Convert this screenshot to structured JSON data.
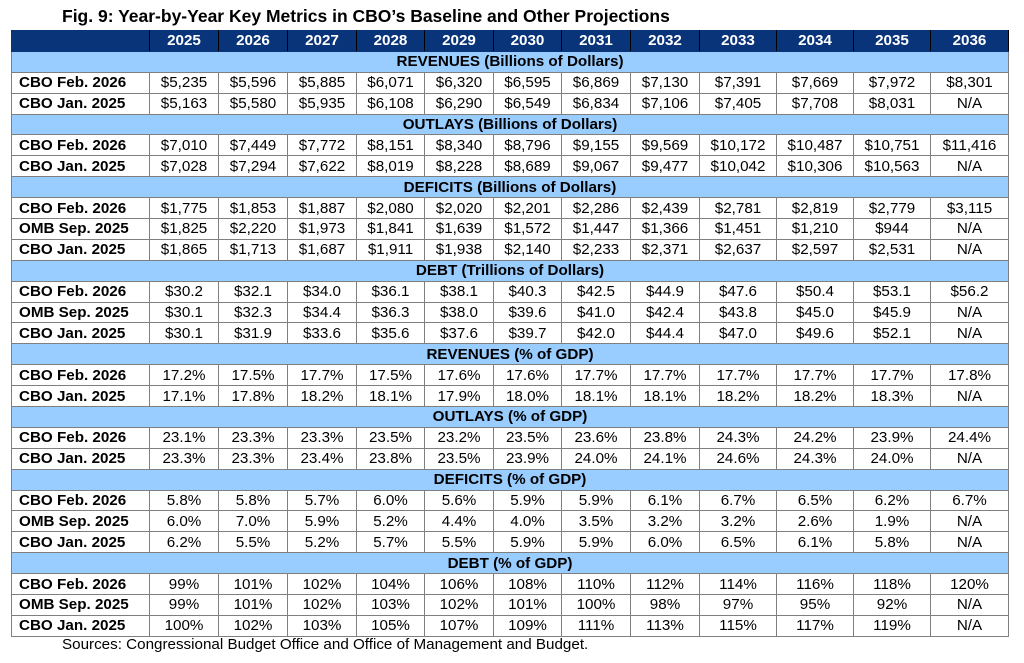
{
  "title": "Fig. 9: Year-by-Year Key Metrics in CBO’s Baseline and Other Projections",
  "source": "Sources: Congressional Budget Office and Office of Management and Budget.",
  "colors": {
    "header_bg": "#0a3479",
    "section_bg": "#99ccff"
  },
  "chart_data": {
    "type": "table",
    "columns": [
      "2025",
      "2026",
      "2027",
      "2028",
      "2029",
      "2030",
      "2031",
      "2032",
      "2033",
      "2034",
      "2035",
      "2036"
    ],
    "sections": [
      {
        "title": "REVENUES (Billions of Dollars)",
        "rows": [
          {
            "label": "CBO Feb. 2026",
            "values": [
              "$5,235",
              "$5,596",
              "$5,885",
              "$6,071",
              "$6,320",
              "$6,595",
              "$6,869",
              "$7,130",
              "$7,391",
              "$7,669",
              "$7,972",
              "$8,301"
            ]
          },
          {
            "label": "CBO Jan. 2025",
            "values": [
              "$5,163",
              "$5,580",
              "$5,935",
              "$6,108",
              "$6,290",
              "$6,549",
              "$6,834",
              "$7,106",
              "$7,405",
              "$7,708",
              "$8,031",
              "N/A"
            ]
          }
        ]
      },
      {
        "title": "OUTLAYS (Billions of Dollars)",
        "rows": [
          {
            "label": "CBO Feb. 2026",
            "values": [
              "$7,010",
              "$7,449",
              "$7,772",
              "$8,151",
              "$8,340",
              "$8,796",
              "$9,155",
              "$9,569",
              "$10,172",
              "$10,487",
              "$10,751",
              "$11,416"
            ]
          },
          {
            "label": "CBO Jan. 2025",
            "values": [
              "$7,028",
              "$7,294",
              "$7,622",
              "$8,019",
              "$8,228",
              "$8,689",
              "$9,067",
              "$9,477",
              "$10,042",
              "$10,306",
              "$10,563",
              "N/A"
            ]
          }
        ]
      },
      {
        "title": "DEFICITS (Billions of Dollars)",
        "rows": [
          {
            "label": "CBO Feb. 2026",
            "values": [
              "$1,775",
              "$1,853",
              "$1,887",
              "$2,080",
              "$2,020",
              "$2,201",
              "$2,286",
              "$2,439",
              "$2,781",
              "$2,819",
              "$2,779",
              "$3,115"
            ]
          },
          {
            "label": "OMB Sep. 2025",
            "values": [
              "$1,825",
              "$2,220",
              "$1,973",
              "$1,841",
              "$1,639",
              "$1,572",
              "$1,447",
              "$1,366",
              "$1,451",
              "$1,210",
              "$944",
              "N/A"
            ]
          },
          {
            "label": "CBO Jan. 2025",
            "values": [
              "$1,865",
              "$1,713",
              "$1,687",
              "$1,911",
              "$1,938",
              "$2,140",
              "$2,233",
              "$2,371",
              "$2,637",
              "$2,597",
              "$2,531",
              "N/A"
            ]
          }
        ]
      },
      {
        "title": "DEBT (Trillions of Dollars)",
        "rows": [
          {
            "label": "CBO Feb. 2026",
            "values": [
              "$30.2",
              "$32.1",
              "$34.0",
              "$36.1",
              "$38.1",
              "$40.3",
              "$42.5",
              "$44.9",
              "$47.6",
              "$50.4",
              "$53.1",
              "$56.2"
            ]
          },
          {
            "label": "OMB Sep. 2025",
            "values": [
              "$30.1",
              "$32.3",
              "$34.4",
              "$36.3",
              "$38.0",
              "$39.6",
              "$41.0",
              "$42.4",
              "$43.8",
              "$45.0",
              "$45.9",
              "N/A"
            ]
          },
          {
            "label": "CBO Jan. 2025",
            "values": [
              "$30.1",
              "$31.9",
              "$33.6",
              "$35.6",
              "$37.6",
              "$39.7",
              "$42.0",
              "$44.4",
              "$47.0",
              "$49.6",
              "$52.1",
              "N/A"
            ]
          }
        ]
      },
      {
        "title": "REVENUES (% of GDP)",
        "rows": [
          {
            "label": "CBO Feb. 2026",
            "values": [
              "17.2%",
              "17.5%",
              "17.7%",
              "17.5%",
              "17.6%",
              "17.6%",
              "17.7%",
              "17.7%",
              "17.7%",
              "17.7%",
              "17.7%",
              "17.8%"
            ]
          },
          {
            "label": "CBO Jan. 2025",
            "values": [
              "17.1%",
              "17.8%",
              "18.2%",
              "18.1%",
              "17.9%",
              "18.0%",
              "18.1%",
              "18.1%",
              "18.2%",
              "18.2%",
              "18.3%",
              "N/A"
            ]
          }
        ]
      },
      {
        "title": "OUTLAYS (% of GDP)",
        "rows": [
          {
            "label": "CBO Feb. 2026",
            "values": [
              "23.1%",
              "23.3%",
              "23.3%",
              "23.5%",
              "23.2%",
              "23.5%",
              "23.6%",
              "23.8%",
              "24.3%",
              "24.2%",
              "23.9%",
              "24.4%"
            ]
          },
          {
            "label": "CBO Jan. 2025",
            "values": [
              "23.3%",
              "23.3%",
              "23.4%",
              "23.8%",
              "23.5%",
              "23.9%",
              "24.0%",
              "24.1%",
              "24.6%",
              "24.3%",
              "24.0%",
              "N/A"
            ]
          }
        ]
      },
      {
        "title": "DEFICITS (% of GDP)",
        "rows": [
          {
            "label": "CBO Feb. 2026",
            "values": [
              "5.8%",
              "5.8%",
              "5.7%",
              "6.0%",
              "5.6%",
              "5.9%",
              "5.9%",
              "6.1%",
              "6.7%",
              "6.5%",
              "6.2%",
              "6.7%"
            ]
          },
          {
            "label": "OMB Sep. 2025",
            "values": [
              "6.0%",
              "7.0%",
              "5.9%",
              "5.2%",
              "4.4%",
              "4.0%",
              "3.5%",
              "3.2%",
              "3.2%",
              "2.6%",
              "1.9%",
              "N/A"
            ]
          },
          {
            "label": "CBO Jan. 2025",
            "values": [
              "6.2%",
              "5.5%",
              "5.2%",
              "5.7%",
              "5.5%",
              "5.9%",
              "5.9%",
              "6.0%",
              "6.5%",
              "6.1%",
              "5.8%",
              "N/A"
            ]
          }
        ]
      },
      {
        "title": "DEBT (% of GDP)",
        "rows": [
          {
            "label": "CBO Feb. 2026",
            "values": [
              "99%",
              "101%",
              "102%",
              "104%",
              "106%",
              "108%",
              "110%",
              "112%",
              "114%",
              "116%",
              "118%",
              "120%"
            ]
          },
          {
            "label": "OMB Sep. 2025",
            "values": [
              "99%",
              "101%",
              "102%",
              "103%",
              "102%",
              "101%",
              "100%",
              "98%",
              "97%",
              "95%",
              "92%",
              "N/A"
            ]
          },
          {
            "label": "CBO Jan. 2025",
            "values": [
              "100%",
              "102%",
              "103%",
              "105%",
              "107%",
              "109%",
              "111%",
              "113%",
              "115%",
              "117%",
              "119%",
              "N/A"
            ]
          }
        ]
      }
    ]
  }
}
